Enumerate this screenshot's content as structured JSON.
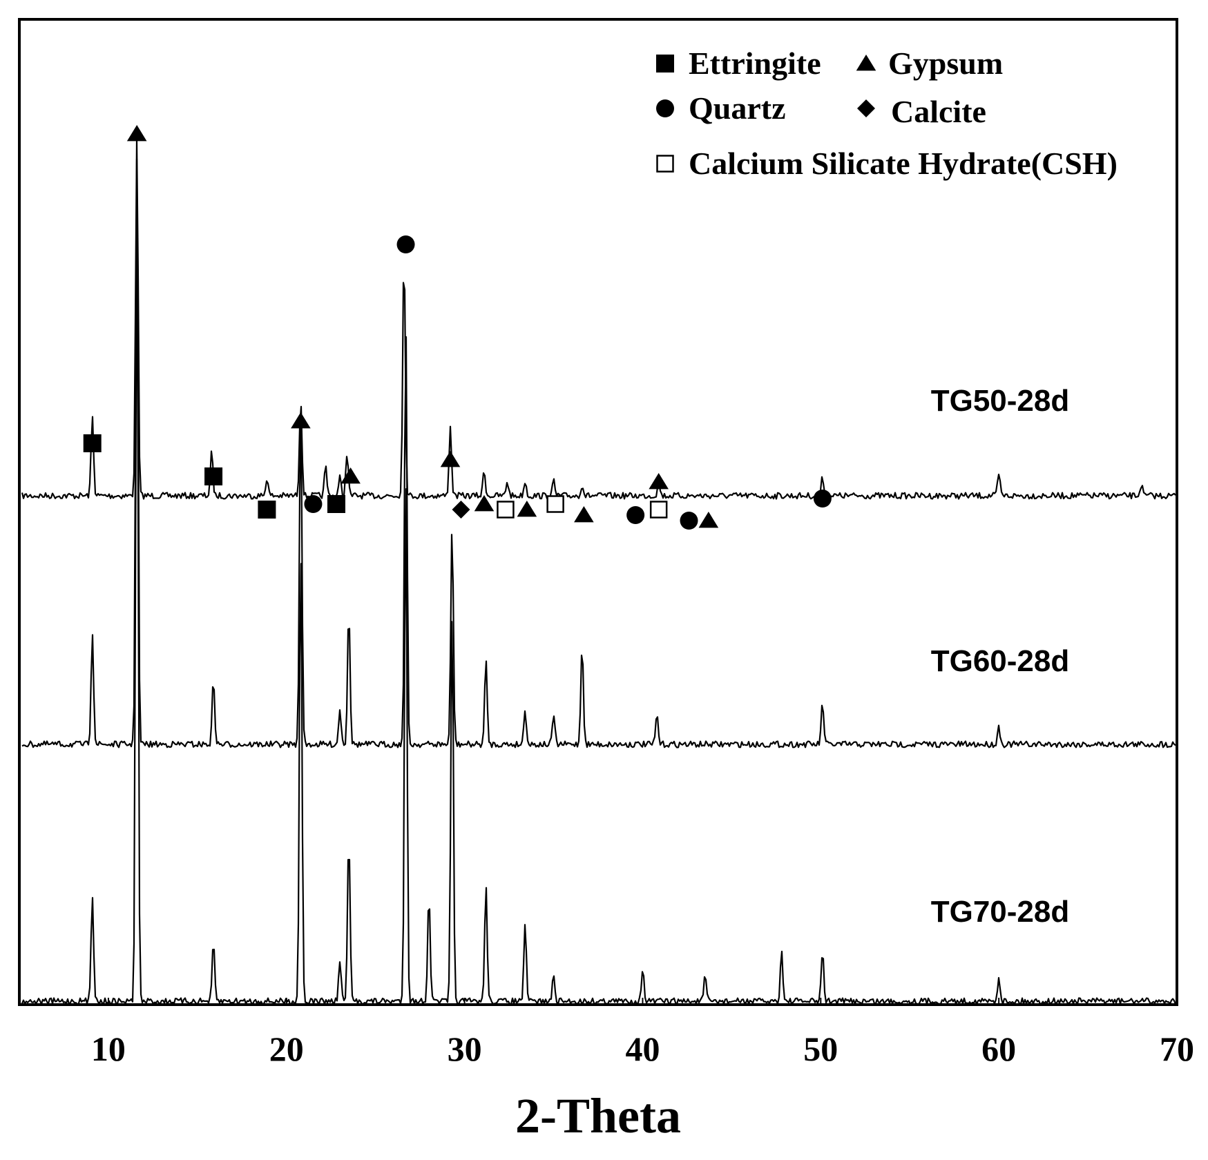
{
  "chart_data": {
    "type": "line",
    "xlabel": "2-Theta",
    "ylabel": "",
    "xlim": [
      5,
      70
    ],
    "x_ticks": [
      10,
      20,
      30,
      40,
      50,
      60,
      70
    ],
    "grid": false,
    "legend_position": "top-right",
    "colors": {
      "trace": "#000000",
      "background": "#ffffff"
    },
    "legend": [
      {
        "marker": "filled-square",
        "label": "Ettringite"
      },
      {
        "marker": "filled-triangle",
        "label": "Gypsum"
      },
      {
        "marker": "filled-circle",
        "label": "Quartz"
      },
      {
        "marker": "filled-diamond",
        "label": "Calcite"
      },
      {
        "marker": "open-square",
        "label": "Calcium Silicate Hydrate(CSH)"
      }
    ],
    "series": [
      {
        "name": "TG50-28d",
        "peaks": [
          {
            "x": 9.1,
            "h": 0.22
          },
          {
            "x": 11.6,
            "h": 1.0
          },
          {
            "x": 15.8,
            "h": 0.12
          },
          {
            "x": 18.9,
            "h": 0.05
          },
          {
            "x": 20.8,
            "h": 0.27
          },
          {
            "x": 22.2,
            "h": 0.08
          },
          {
            "x": 23.0,
            "h": 0.05
          },
          {
            "x": 23.4,
            "h": 0.12
          },
          {
            "x": 26.6,
            "h": 0.68
          },
          {
            "x": 29.2,
            "h": 0.19
          },
          {
            "x": 31.1,
            "h": 0.07
          },
          {
            "x": 32.4,
            "h": 0.04
          },
          {
            "x": 33.4,
            "h": 0.04
          },
          {
            "x": 35.0,
            "h": 0.04
          },
          {
            "x": 36.6,
            "h": 0.03
          },
          {
            "x": 40.9,
            "h": 0.04
          },
          {
            "x": 50.1,
            "h": 0.05
          },
          {
            "x": 60.0,
            "h": 0.06
          },
          {
            "x": 68.0,
            "h": 0.03
          }
        ]
      },
      {
        "name": "TG60-28d",
        "peaks": [
          {
            "x": 9.1,
            "h": 0.19
          },
          {
            "x": 11.6,
            "h": 0.99
          },
          {
            "x": 15.9,
            "h": 0.11
          },
          {
            "x": 20.8,
            "h": 0.58
          },
          {
            "x": 23.0,
            "h": 0.06
          },
          {
            "x": 23.5,
            "h": 0.23
          },
          {
            "x": 26.7,
            "h": 0.71
          },
          {
            "x": 29.3,
            "h": 0.37
          },
          {
            "x": 31.2,
            "h": 0.14
          },
          {
            "x": 33.4,
            "h": 0.06
          },
          {
            "x": 35.0,
            "h": 0.05
          },
          {
            "x": 36.6,
            "h": 0.17
          },
          {
            "x": 40.8,
            "h": 0.05
          },
          {
            "x": 50.1,
            "h": 0.07
          },
          {
            "x": 60.0,
            "h": 0.03
          }
        ]
      },
      {
        "name": "TG70-28d",
        "peaks": [
          {
            "x": 9.1,
            "h": 0.13
          },
          {
            "x": 11.6,
            "h": 1.0
          },
          {
            "x": 15.9,
            "h": 0.07
          },
          {
            "x": 20.8,
            "h": 0.56
          },
          {
            "x": 23.0,
            "h": 0.05
          },
          {
            "x": 23.5,
            "h": 0.2
          },
          {
            "x": 26.7,
            "h": 0.64
          },
          {
            "x": 28.0,
            "h": 0.13
          },
          {
            "x": 29.3,
            "h": 0.48
          },
          {
            "x": 31.2,
            "h": 0.14
          },
          {
            "x": 33.4,
            "h": 0.09
          },
          {
            "x": 35.0,
            "h": 0.03
          },
          {
            "x": 40.0,
            "h": 0.04
          },
          {
            "x": 43.5,
            "h": 0.03
          },
          {
            "x": 47.8,
            "h": 0.06
          },
          {
            "x": 50.1,
            "h": 0.06
          },
          {
            "x": 60.0,
            "h": 0.03
          }
        ]
      }
    ],
    "phase_markers": [
      {
        "marker": "filled-triangle",
        "x": 11.6,
        "level": 0.97
      },
      {
        "marker": "filled-circle",
        "x": 26.7,
        "level": 0.77
      },
      {
        "marker": "filled-square",
        "x": 9.1,
        "level": 0.41
      },
      {
        "marker": "filled-square",
        "x": 15.9,
        "level": 0.35
      },
      {
        "marker": "filled-square",
        "x": 18.9,
        "level": 0.29
      },
      {
        "marker": "filled-triangle",
        "x": 20.8,
        "level": 0.45
      },
      {
        "marker": "filled-circle",
        "x": 21.5,
        "level": 0.3
      },
      {
        "marker": "filled-square",
        "x": 22.8,
        "level": 0.3
      },
      {
        "marker": "filled-triangle",
        "x": 23.6,
        "level": 0.35
      },
      {
        "marker": "filled-triangle",
        "x": 29.2,
        "level": 0.38
      },
      {
        "marker": "filled-diamond",
        "x": 29.8,
        "level": 0.29
      },
      {
        "marker": "filled-triangle",
        "x": 31.1,
        "level": 0.3
      },
      {
        "marker": "open-square",
        "x": 32.3,
        "level": 0.29
      },
      {
        "marker": "filled-triangle",
        "x": 33.5,
        "level": 0.29
      },
      {
        "marker": "open-square",
        "x": 35.1,
        "level": 0.3
      },
      {
        "marker": "filled-triangle",
        "x": 36.7,
        "level": 0.28
      },
      {
        "marker": "filled-circle",
        "x": 39.6,
        "level": 0.28
      },
      {
        "marker": "open-square",
        "x": 40.9,
        "level": 0.29
      },
      {
        "marker": "filled-triangle",
        "x": 40.9,
        "level": 0.34
      },
      {
        "marker": "filled-circle",
        "x": 42.6,
        "level": 0.27
      },
      {
        "marker": "filled-triangle",
        "x": 43.7,
        "level": 0.27
      },
      {
        "marker": "filled-circle",
        "x": 50.1,
        "level": 0.31
      }
    ]
  }
}
